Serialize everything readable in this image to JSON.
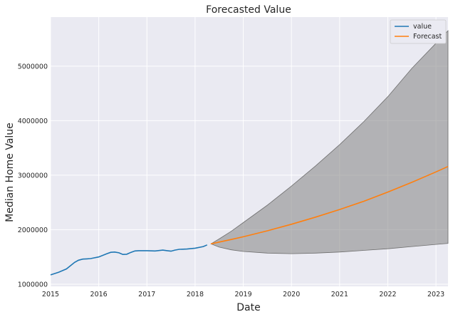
{
  "chart_data": {
    "type": "line",
    "title": "Forecasted Value",
    "xlabel": "Date",
    "ylabel": "Median Home Value",
    "xlim": [
      2015.0,
      2023.25
    ],
    "ylim": [
      960000,
      5900000
    ],
    "x_ticks": [
      2015,
      2016,
      2017,
      2018,
      2019,
      2020,
      2021,
      2022,
      2023
    ],
    "x_tick_labels": [
      "2015",
      "2016",
      "2017",
      "2018",
      "2019",
      "2020",
      "2021",
      "2022",
      "2023"
    ],
    "y_ticks": [
      1000000,
      2000000,
      3000000,
      4000000,
      5000000
    ],
    "y_tick_labels": [
      "1000000",
      "2000000",
      "3000000",
      "4000000",
      "5000000"
    ],
    "grid": true,
    "legend_position": "top-right",
    "colors": {
      "value": "#1f77b4",
      "forecast": "#ff7f0e",
      "band": "#8c8c8c",
      "plot_bg": "#eaeaf2",
      "grid": "#ffffff"
    },
    "series": [
      {
        "name": "value",
        "x": [
          2015.0,
          2015.17,
          2015.33,
          2015.5,
          2015.58,
          2015.67,
          2015.75,
          2015.83,
          2016.0,
          2016.17,
          2016.25,
          2016.33,
          2016.42,
          2016.5,
          2016.58,
          2016.67,
          2016.75,
          2016.83,
          2016.92,
          2017.0,
          2017.17,
          2017.33,
          2017.42,
          2017.5,
          2017.58,
          2017.67,
          2017.75,
          2017.83,
          2018.0,
          2018.17,
          2018.25
        ],
        "y": [
          1170000,
          1220000,
          1280000,
          1400000,
          1440000,
          1460000,
          1465000,
          1470000,
          1500000,
          1560000,
          1585000,
          1590000,
          1575000,
          1545000,
          1550000,
          1585000,
          1610000,
          1615000,
          1615000,
          1615000,
          1610000,
          1625000,
          1615000,
          1605000,
          1625000,
          1640000,
          1642000,
          1645000,
          1660000,
          1690000,
          1720000
        ]
      },
      {
        "name": "Forecast",
        "x": [
          2018.33,
          2018.75,
          2019.0,
          2019.5,
          2020.0,
          2020.5,
          2021.0,
          2021.5,
          2022.0,
          2022.5,
          2023.0,
          2023.25
        ],
        "y": [
          1740000,
          1820000,
          1870000,
          1980000,
          2100000,
          2230000,
          2370000,
          2520000,
          2690000,
          2870000,
          3060000,
          3160000
        ]
      }
    ],
    "confidence_band": {
      "x": [
        2018.33,
        2018.5,
        2018.75,
        2019.0,
        2019.5,
        2020.0,
        2020.5,
        2021.0,
        2021.5,
        2022.0,
        2022.5,
        2023.0,
        2023.25
      ],
      "lower": [
        1740000,
        1680000,
        1630000,
        1600000,
        1570000,
        1560000,
        1570000,
        1590000,
        1620000,
        1650000,
        1690000,
        1730000,
        1750000
      ],
      "upper": [
        1740000,
        1830000,
        1970000,
        2130000,
        2450000,
        2800000,
        3170000,
        3560000,
        3980000,
        4440000,
        4960000,
        5420000,
        5650000
      ]
    }
  }
}
